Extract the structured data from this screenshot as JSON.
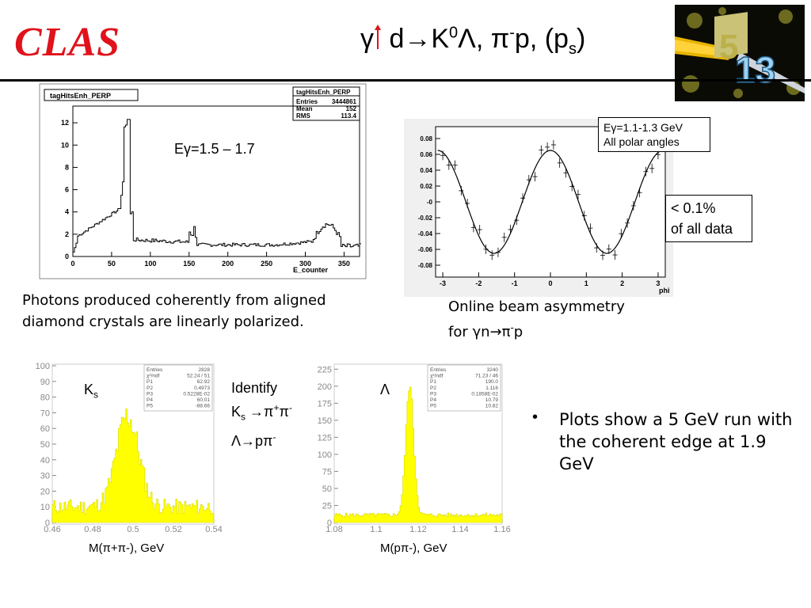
{
  "header": {
    "logo": "CLAS",
    "title_pre": "γ",
    "title_mid": " d→K",
    "title_k_sup": "0",
    "title_lambda": "Λ, π",
    "title_pi_sup": "-",
    "title_p": "p, (p",
    "title_s_sub": "s",
    "title_close": ")",
    "badge_text": "13"
  },
  "tagger_plot": {
    "title": "tagHitsEnh_PERP",
    "stats_title": "tagHitsEnh_PERP",
    "stats": [
      {
        "label": "Entries",
        "value": "3444861"
      },
      {
        "label": "Mean",
        "value": "152"
      },
      {
        "label": "RMS",
        "value": "113.4"
      }
    ],
    "energy_label": "Eγ=1.5 – 1.7",
    "xlabel": "E_counter",
    "xticks": [
      "0",
      "50",
      "100",
      "150",
      "200",
      "250",
      "300",
      "350"
    ],
    "yticks": [
      "0",
      "2",
      "4",
      "6",
      "8",
      "10",
      "12"
    ]
  },
  "asym_plot": {
    "legend_line1": "Eγ=1.1-1.3 GeV",
    "legend_line2": "All polar angles",
    "note_line1": "< 0.1%",
    "note_line2": "of all data",
    "xlabel": "phi",
    "xticks": [
      "-3",
      "-2",
      "-1",
      "0",
      "1",
      "2",
      "3"
    ],
    "yticks": [
      "0.08",
      "0.06",
      "0.04",
      "0.02",
      "-0",
      "-0.02",
      "-0.04",
      "-0.06",
      "-0.08"
    ]
  },
  "captions": {
    "photons_line1": "Photons produced coherently from aligned",
    "photons_line2": "diamond crystals are linearly polarized.",
    "asym_line1": "Online beam asymmetry",
    "asym_line2": "for γn→π",
    "asym_line2_sup": "-",
    "asym_line2_end": "p"
  },
  "ks_plot": {
    "label": "K",
    "label_sub": "s",
    "xlabel": "M(π+π-), GeV",
    "xticks": [
      "0.46",
      "0.48",
      "0.5",
      "0.52",
      "0.54"
    ],
    "yticks": [
      "100",
      "90",
      "80",
      "70",
      "60",
      "50",
      "40",
      "30",
      "20",
      "10",
      "0"
    ],
    "stats": [
      {
        "label": "Entries",
        "value": "2828"
      },
      {
        "label": "χ²/ndf",
        "value": "52.24 / 51"
      },
      {
        "label": "P1",
        "value": "62.92"
      },
      {
        "label": "P2",
        "value": "0.4973"
      },
      {
        "label": "P3",
        "value": "0.5228E-02"
      },
      {
        "label": "P4",
        "value": "60.01"
      },
      {
        "label": "P5",
        "value": "-88.66"
      }
    ]
  },
  "identify": {
    "line1": "Identify",
    "line2": "K",
    "line2_sub": "s",
    "line2_rest": " →π",
    "line2_sup1": "+",
    "line2_pi2": "π",
    "line2_sup2": "-",
    "line3": "Λ→pπ",
    "line3_sup": "-"
  },
  "lambda_plot": {
    "label": "Λ",
    "xlabel": "M(pπ-), GeV",
    "xticks": [
      "1.08",
      "1.1",
      "1.12",
      "1.14",
      "1.16"
    ],
    "yticks": [
      "225",
      "200",
      "175",
      "150",
      "125",
      "100",
      "75",
      "50",
      "25",
      "0"
    ],
    "stats": [
      {
        "label": "Entries",
        "value": "3240"
      },
      {
        "label": "χ²/ndf",
        "value": "71.23 / 46"
      },
      {
        "label": "P1",
        "value": "190.0"
      },
      {
        "label": "P2",
        "value": "1.116"
      },
      {
        "label": "P3",
        "value": "0.1858E-02"
      },
      {
        "label": "P4",
        "value": "10.79"
      },
      {
        "label": "P5",
        "value": "10.82"
      }
    ]
  },
  "bullet": {
    "marker": "•",
    "text": "Plots show a 5 GeV run with the coherent edge at 1.9 GeV"
  }
}
